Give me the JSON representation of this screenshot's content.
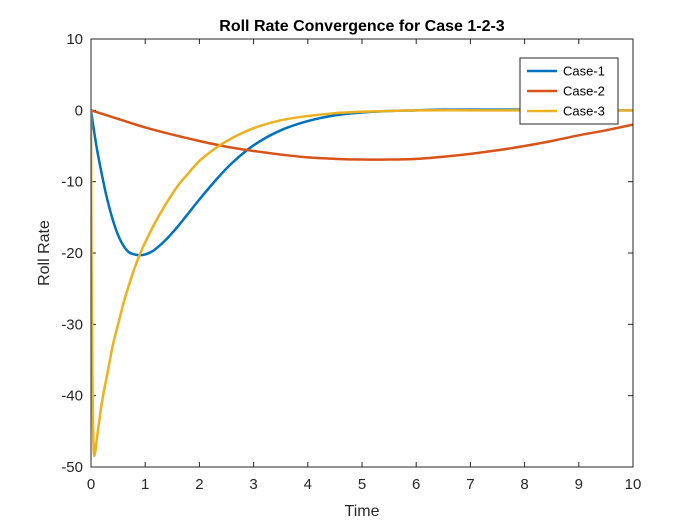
{
  "chart_data": {
    "type": "line",
    "title": "Roll Rate Convergence for Case 1-2-3",
    "xlabel": "Time",
    "ylabel": "Roll Rate",
    "xlim": [
      0,
      10
    ],
    "ylim": [
      -50,
      10
    ],
    "xticks": [
      0,
      1,
      2,
      3,
      4,
      5,
      6,
      7,
      8,
      9,
      10
    ],
    "yticks": [
      -50,
      -40,
      -30,
      -20,
      -10,
      0,
      10
    ],
    "grid": false,
    "legend_position": "top-right",
    "series": [
      {
        "name": "Case-1",
        "color": "#0072BD",
        "x": [
          0,
          0.1,
          0.2,
          0.3,
          0.4,
          0.5,
          0.6,
          0.7,
          0.8,
          0.9,
          1.0,
          1.1,
          1.2,
          1.4,
          1.6,
          1.8,
          2.0,
          2.3,
          2.6,
          3.0,
          3.5,
          4.0,
          4.5,
          5.0,
          5.5,
          6.0,
          6.5,
          7.0,
          7.5,
          8.0,
          8.5,
          9.0,
          9.5,
          10.0
        ],
        "y": [
          0,
          -5.0,
          -9.0,
          -12.5,
          -15.3,
          -17.5,
          -19.0,
          -19.9,
          -20.2,
          -20.3,
          -20.2,
          -19.9,
          -19.4,
          -18.0,
          -16.3,
          -14.4,
          -12.5,
          -9.8,
          -7.4,
          -4.9,
          -2.8,
          -1.5,
          -0.7,
          -0.3,
          -0.1,
          0.0,
          0.1,
          0.1,
          0.1,
          0.1,
          0.1,
          0.0,
          0.0,
          0.0
        ]
      },
      {
        "name": "Case-2",
        "color": "#D95319",
        "x": [
          0,
          0.5,
          1.0,
          1.5,
          2.0,
          2.5,
          3.0,
          3.5,
          4.0,
          4.5,
          5.0,
          5.5,
          6.0,
          6.5,
          7.0,
          7.5,
          8.0,
          8.5,
          9.0,
          9.5,
          10.0
        ],
        "y": [
          0,
          -1.2,
          -2.4,
          -3.4,
          -4.3,
          -5.1,
          -5.7,
          -6.2,
          -6.6,
          -6.8,
          -6.9,
          -6.9,
          -6.8,
          -6.5,
          -6.1,
          -5.6,
          -5.0,
          -4.3,
          -3.5,
          -2.8,
          -2.0
        ]
      },
      {
        "name": "Case-3",
        "color": "#EDB120",
        "x": [
          0,
          0.01,
          0.03,
          0.05,
          0.08,
          0.1,
          0.2,
          0.3,
          0.4,
          0.5,
          0.6,
          0.7,
          0.8,
          0.9,
          1.0,
          1.2,
          1.4,
          1.6,
          1.8,
          2.0,
          2.3,
          2.6,
          3.0,
          3.5,
          4.0,
          4.5,
          5.0,
          5.5,
          6.0,
          7.0,
          8.0,
          9.0,
          10.0
        ],
        "y": [
          0,
          -20.0,
          -40.0,
          -47.8,
          -47.8,
          -46.5,
          -41.0,
          -37.0,
          -33.0,
          -30.0,
          -27.0,
          -24.5,
          -22.2,
          -20.2,
          -18.5,
          -15.5,
          -12.9,
          -10.6,
          -8.8,
          -7.1,
          -5.3,
          -3.9,
          -2.5,
          -1.4,
          -0.8,
          -0.4,
          -0.2,
          -0.1,
          0.0,
          0.0,
          0.0,
          0.0,
          0.0
        ]
      }
    ]
  }
}
